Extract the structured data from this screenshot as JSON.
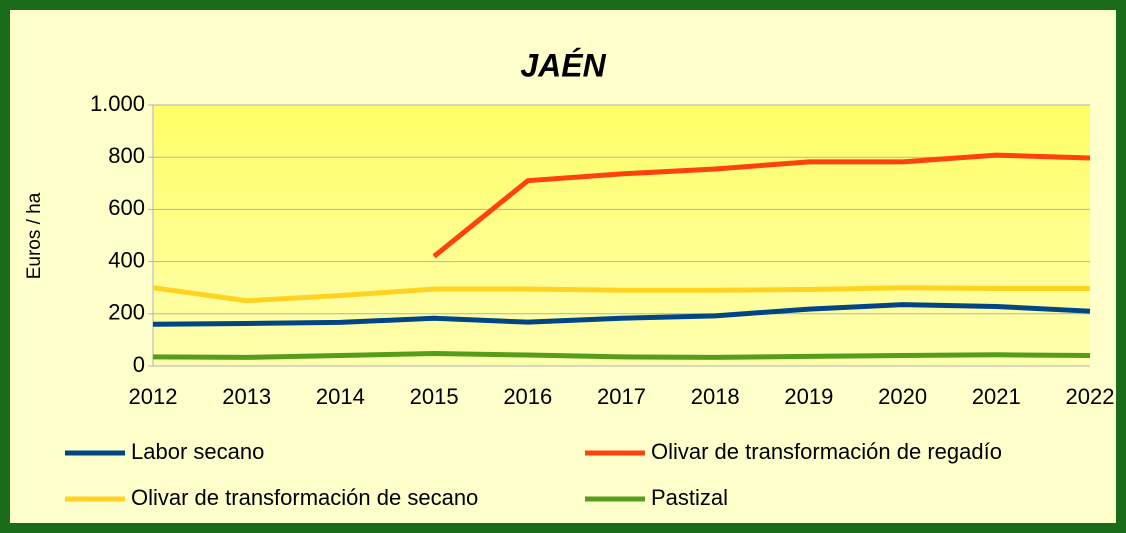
{
  "chart_data": {
    "type": "line",
    "title": "JAÉN",
    "y_label": "Euros / ha",
    "categories": [
      "2012",
      "2013",
      "2014",
      "2015",
      "2016",
      "2017",
      "2018",
      "2019",
      "2020",
      "2021",
      "2022"
    ],
    "series": [
      {
        "name": "Labor secano",
        "color": "#004586",
        "values": [
          160,
          163,
          167,
          183,
          168,
          183,
          192,
          218,
          235,
          228,
          210
        ]
      },
      {
        "name": "Olivar de transformación de regadío",
        "color": "#ff420e",
        "values": [
          null,
          null,
          null,
          420,
          710,
          736,
          755,
          782,
          782,
          808,
          797
        ]
      },
      {
        "name": "Olivar de transformación de secano",
        "color": "#ffd320",
        "values": [
          300,
          250,
          270,
          295,
          295,
          290,
          290,
          293,
          300,
          297,
          297
        ]
      },
      {
        "name": "Pastizal",
        "color": "#579d1c",
        "values": [
          35,
          33,
          40,
          48,
          42,
          35,
          33,
          37,
          40,
          43,
          40
        ]
      }
    ],
    "ylim": [
      0,
      1000
    ],
    "yticks": [
      0,
      200,
      400,
      600,
      800,
      {
        "value": 1000,
        "label": "1.000"
      }
    ],
    "grid": true
  }
}
